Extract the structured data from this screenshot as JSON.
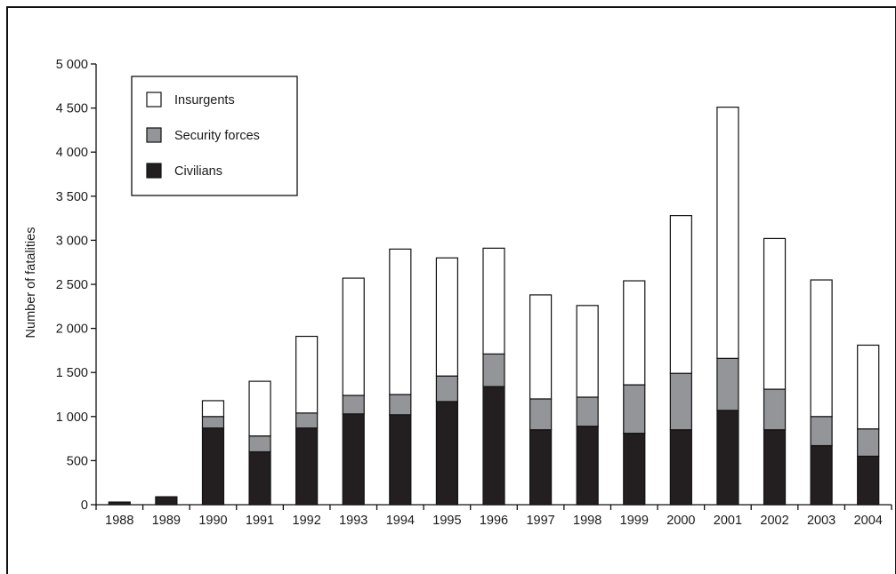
{
  "chart_data": {
    "type": "bar",
    "stacked": true,
    "title": "",
    "xlabel": "",
    "ylabel": "Number of fatalities",
    "ylim": [
      0,
      5000
    ],
    "yticks": [
      0,
      500,
      1000,
      1500,
      2000,
      2500,
      3000,
      3500,
      4000,
      4500,
      5000
    ],
    "ytick_labels": [
      "0",
      "500",
      "1 000",
      "1 500",
      "2 000",
      "2 500",
      "3 000",
      "3 500",
      "4 000",
      "4 500",
      "5 000"
    ],
    "categories": [
      "1988",
      "1989",
      "1990",
      "1991",
      "1992",
      "1993",
      "1994",
      "1995",
      "1996",
      "1997",
      "1998",
      "1999",
      "2000",
      "2001",
      "2002",
      "2003",
      "2004"
    ],
    "series": [
      {
        "name": "Civilians",
        "color": "#231f20",
        "values": [
          30,
          90,
          870,
          600,
          870,
          1030,
          1020,
          1170,
          1340,
          850,
          890,
          810,
          850,
          1070,
          850,
          670,
          550
        ]
      },
      {
        "name": "Security forces",
        "color": "#939598",
        "values": [
          0,
          0,
          130,
          180,
          170,
          210,
          230,
          290,
          370,
          350,
          330,
          550,
          640,
          590,
          460,
          330,
          310
        ]
      },
      {
        "name": "Insurgents",
        "color": "#ffffff",
        "values": [
          0,
          0,
          180,
          620,
          870,
          1330,
          1650,
          1340,
          1200,
          1180,
          1040,
          1180,
          1790,
          2850,
          1710,
          1550,
          950
        ]
      }
    ],
    "legend": {
      "position": "top-left",
      "entries": [
        {
          "label": "Insurgents",
          "color": "#ffffff"
        },
        {
          "label": "Security forces",
          "color": "#939598"
        },
        {
          "label": "Civilians",
          "color": "#231f20"
        }
      ]
    },
    "grid": false
  }
}
